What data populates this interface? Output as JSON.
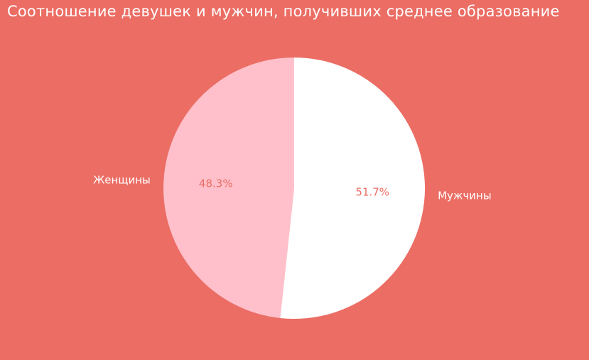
{
  "chart_data": {
    "type": "pie",
    "title": "Соотношение девушек и мужчин, получивших среднее образование",
    "slices": [
      {
        "label": "Женщины",
        "value": 48.3,
        "pct_label": "48.3%",
        "color": "#FFC0CB"
      },
      {
        "label": "Мужчины",
        "value": 51.7,
        "pct_label": "51.7%",
        "color": "#FFFFFF"
      }
    ],
    "start_angle": 90,
    "direction": "counterclockwise",
    "legend": "none",
    "grid": "off",
    "colors": {
      "background": "#EB6D64",
      "title_text": "#FFFFFF",
      "category_label_text": "#FFFFFF",
      "pct_label_text": "#EB6D64"
    }
  }
}
